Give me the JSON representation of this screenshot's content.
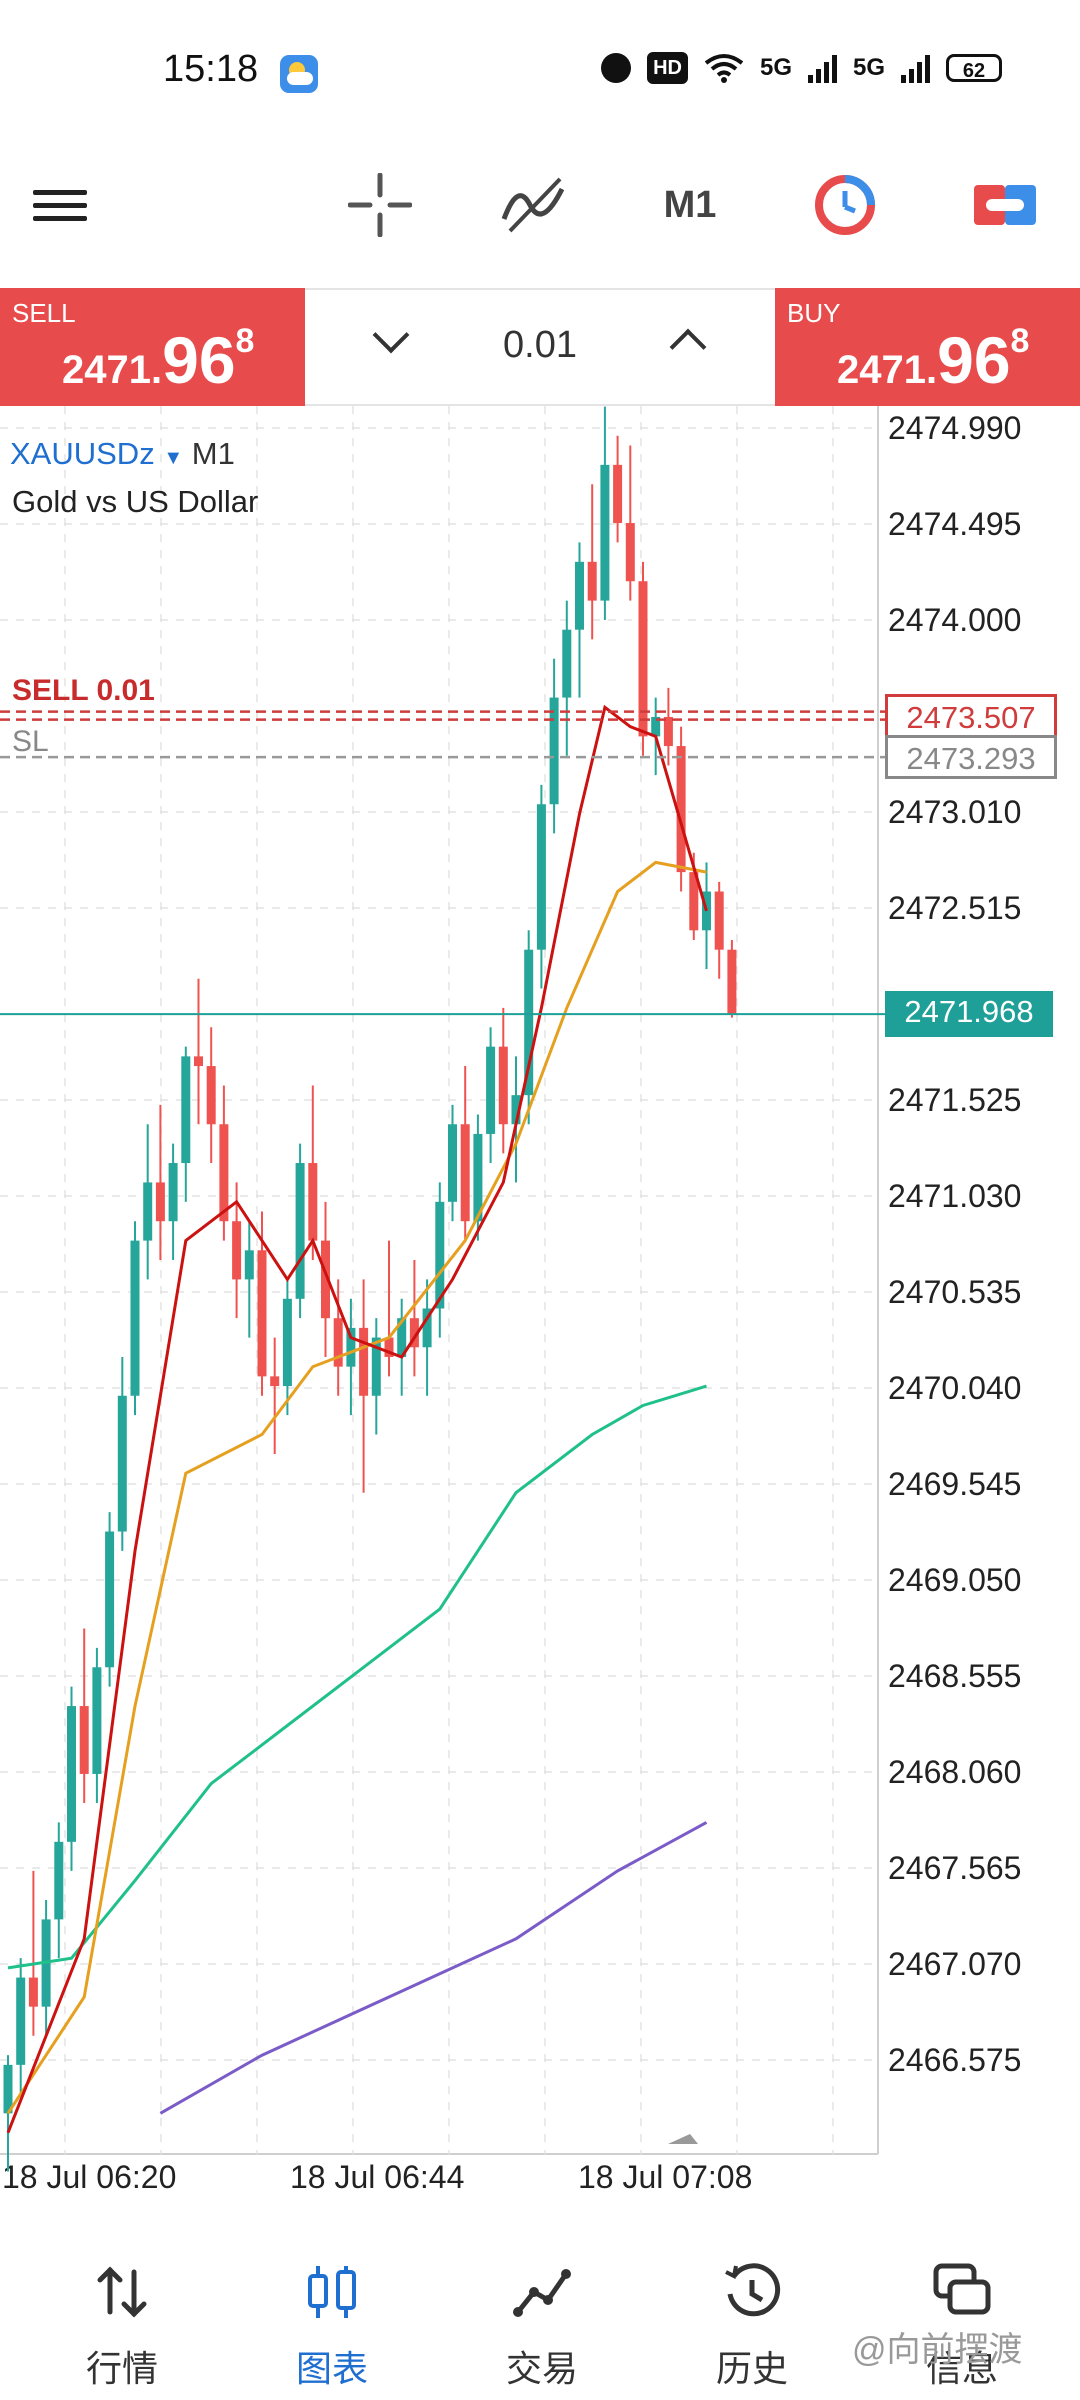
{
  "status_bar": {
    "time": "15:18",
    "network": "5G",
    "network2": "5G",
    "hd": "HD",
    "battery": "62"
  },
  "toolbar": {
    "timeframe": "M1",
    "icons": [
      "menu-icon",
      "crosshair-icon",
      "indicators-icon",
      "timeframe-label",
      "history-clock-icon",
      "trade-toggle-icon"
    ]
  },
  "trade_panel": {
    "sell_label": "SELL",
    "sell_price_main": "2471.",
    "sell_price_big": "96",
    "sell_price_sup": "8",
    "buy_label": "BUY",
    "buy_price_main": "2471.",
    "buy_price_big": "96",
    "buy_price_sup": "8",
    "volume": "0.01"
  },
  "chart": {
    "symbol": "XAUUSDz",
    "timeframe": "M1",
    "description": "Gold vs US Dollar",
    "sell_line_label": "SELL 0.01",
    "sl_label": "SL",
    "sell_price_tag": "2473.507",
    "sl_price_tag": "2473.293",
    "current_price_tag": "2471.968",
    "price_ticks": [
      "2474.990",
      "2474.495",
      "2474.000",
      "2473.010",
      "2472.515",
      "2471.525",
      "2471.030",
      "2470.535",
      "2470.040",
      "2469.545",
      "2469.050",
      "2468.555",
      "2468.060",
      "2467.565",
      "2467.070",
      "2466.575"
    ],
    "time_ticks": [
      "18 Jul 06:20",
      "18 Jul 06:44",
      "18 Jul 07:08"
    ],
    "colors": {
      "bull": "#26a69a",
      "bear": "#ef5350",
      "ma_fast": "#cc1111",
      "ma_mid": "#e6a020",
      "ma_slow": "#20c08a",
      "ma_long": "#7a5bc8",
      "current_line": "#1e9f98"
    }
  },
  "chart_data": {
    "type": "candlestick",
    "instrument": "XAUUSDz",
    "timeframe": "M1",
    "ylim": [
      2466.3,
      2475.1
    ],
    "candles": [
      {
        "o": 2466.3,
        "h": 2466.6,
        "l": 2466.0,
        "c": 2466.55
      },
      {
        "o": 2466.55,
        "h": 2467.1,
        "l": 2466.4,
        "c": 2467.0
      },
      {
        "o": 2467.0,
        "h": 2467.55,
        "l": 2466.7,
        "c": 2466.85
      },
      {
        "o": 2466.85,
        "h": 2467.4,
        "l": 2466.7,
        "c": 2467.3
      },
      {
        "o": 2467.3,
        "h": 2467.8,
        "l": 2467.1,
        "c": 2467.7
      },
      {
        "o": 2467.7,
        "h": 2468.5,
        "l": 2467.55,
        "c": 2468.4
      },
      {
        "o": 2468.4,
        "h": 2468.8,
        "l": 2467.9,
        "c": 2468.05
      },
      {
        "o": 2468.05,
        "h": 2468.7,
        "l": 2467.9,
        "c": 2468.6
      },
      {
        "o": 2468.6,
        "h": 2469.4,
        "l": 2468.5,
        "c": 2469.3
      },
      {
        "o": 2469.3,
        "h": 2470.2,
        "l": 2469.2,
        "c": 2470.0
      },
      {
        "o": 2470.0,
        "h": 2470.9,
        "l": 2469.9,
        "c": 2470.8
      },
      {
        "o": 2470.8,
        "h": 2471.4,
        "l": 2470.6,
        "c": 2471.1
      },
      {
        "o": 2471.1,
        "h": 2471.5,
        "l": 2470.7,
        "c": 2470.9
      },
      {
        "o": 2470.9,
        "h": 2471.3,
        "l": 2470.7,
        "c": 2471.2
      },
      {
        "o": 2471.2,
        "h": 2471.8,
        "l": 2471.0,
        "c": 2471.75
      },
      {
        "o": 2471.75,
        "h": 2472.15,
        "l": 2471.4,
        "c": 2471.7
      },
      {
        "o": 2471.7,
        "h": 2471.9,
        "l": 2471.2,
        "c": 2471.4
      },
      {
        "o": 2471.4,
        "h": 2471.6,
        "l": 2470.8,
        "c": 2470.9
      },
      {
        "o": 2470.9,
        "h": 2471.1,
        "l": 2470.4,
        "c": 2470.6
      },
      {
        "o": 2470.6,
        "h": 2470.9,
        "l": 2470.3,
        "c": 2470.75
      },
      {
        "o": 2470.75,
        "h": 2470.95,
        "l": 2470.0,
        "c": 2470.1
      },
      {
        "o": 2470.1,
        "h": 2470.3,
        "l": 2469.7,
        "c": 2470.05
      },
      {
        "o": 2470.05,
        "h": 2470.6,
        "l": 2469.9,
        "c": 2470.5
      },
      {
        "o": 2470.5,
        "h": 2471.3,
        "l": 2470.4,
        "c": 2471.2
      },
      {
        "o": 2471.2,
        "h": 2471.6,
        "l": 2470.7,
        "c": 2470.8
      },
      {
        "o": 2470.8,
        "h": 2471.0,
        "l": 2470.2,
        "c": 2470.4
      },
      {
        "o": 2470.4,
        "h": 2470.6,
        "l": 2470.0,
        "c": 2470.15
      },
      {
        "o": 2470.15,
        "h": 2470.5,
        "l": 2469.9,
        "c": 2470.35
      },
      {
        "o": 2470.35,
        "h": 2470.6,
        "l": 2469.5,
        "c": 2470.0
      },
      {
        "o": 2470.0,
        "h": 2470.4,
        "l": 2469.8,
        "c": 2470.3
      },
      {
        "o": 2470.3,
        "h": 2470.8,
        "l": 2470.1,
        "c": 2470.2
      },
      {
        "o": 2470.2,
        "h": 2470.5,
        "l": 2470.0,
        "c": 2470.4
      },
      {
        "o": 2470.4,
        "h": 2470.7,
        "l": 2470.1,
        "c": 2470.25
      },
      {
        "o": 2470.25,
        "h": 2470.6,
        "l": 2470.0,
        "c": 2470.45
      },
      {
        "o": 2470.45,
        "h": 2471.1,
        "l": 2470.3,
        "c": 2471.0
      },
      {
        "o": 2471.0,
        "h": 2471.5,
        "l": 2470.9,
        "c": 2471.4
      },
      {
        "o": 2471.4,
        "h": 2471.7,
        "l": 2470.8,
        "c": 2470.9
      },
      {
        "o": 2470.9,
        "h": 2471.45,
        "l": 2470.8,
        "c": 2471.35
      },
      {
        "o": 2471.35,
        "h": 2471.9,
        "l": 2471.2,
        "c": 2471.8
      },
      {
        "o": 2471.8,
        "h": 2472.0,
        "l": 2471.25,
        "c": 2471.4
      },
      {
        "o": 2471.4,
        "h": 2471.75,
        "l": 2471.1,
        "c": 2471.55
      },
      {
        "o": 2471.55,
        "h": 2472.4,
        "l": 2471.4,
        "c": 2472.3
      },
      {
        "o": 2472.3,
        "h": 2473.15,
        "l": 2472.1,
        "c": 2473.05
      },
      {
        "o": 2473.05,
        "h": 2473.8,
        "l": 2472.9,
        "c": 2473.6
      },
      {
        "o": 2473.6,
        "h": 2474.1,
        "l": 2473.3,
        "c": 2473.95
      },
      {
        "o": 2473.95,
        "h": 2474.4,
        "l": 2473.6,
        "c": 2474.3
      },
      {
        "o": 2474.3,
        "h": 2474.7,
        "l": 2473.9,
        "c": 2474.1
      },
      {
        "o": 2474.1,
        "h": 2475.1,
        "l": 2474.0,
        "c": 2474.8
      },
      {
        "o": 2474.8,
        "h": 2474.95,
        "l": 2474.4,
        "c": 2474.5
      },
      {
        "o": 2474.5,
        "h": 2474.9,
        "l": 2474.1,
        "c": 2474.2
      },
      {
        "o": 2474.2,
        "h": 2474.3,
        "l": 2473.3,
        "c": 2473.4
      },
      {
        "o": 2473.4,
        "h": 2473.6,
        "l": 2473.2,
        "c": 2473.5
      },
      {
        "o": 2473.5,
        "h": 2473.65,
        "l": 2473.25,
        "c": 2473.35
      },
      {
        "o": 2473.35,
        "h": 2473.45,
        "l": 2472.6,
        "c": 2472.7
      },
      {
        "o": 2472.7,
        "h": 2472.8,
        "l": 2472.35,
        "c": 2472.4
      },
      {
        "o": 2472.4,
        "h": 2472.75,
        "l": 2472.2,
        "c": 2472.6
      },
      {
        "o": 2472.6,
        "h": 2472.65,
        "l": 2472.15,
        "c": 2472.3
      },
      {
        "o": 2472.3,
        "h": 2472.35,
        "l": 2471.95,
        "c": 2471.97
      }
    ],
    "ma_fast": [
      [
        0,
        2466.2
      ],
      [
        6,
        2467.2
      ],
      [
        10,
        2469.2
      ],
      [
        14,
        2470.8
      ],
      [
        18,
        2471.0
      ],
      [
        22,
        2470.6
      ],
      [
        24,
        2470.8
      ],
      [
        27,
        2470.3
      ],
      [
        31,
        2470.2
      ],
      [
        35,
        2470.6
      ],
      [
        39,
        2471.1
      ],
      [
        42,
        2472.0
      ],
      [
        45,
        2473.0
      ],
      [
        47,
        2473.55
      ],
      [
        49,
        2473.45
      ],
      [
        51,
        2473.4
      ],
      [
        53,
        2472.95
      ],
      [
        55,
        2472.5
      ]
    ],
    "ma_mid": [
      [
        0,
        2466.3
      ],
      [
        6,
        2466.9
      ],
      [
        10,
        2468.4
      ],
      [
        14,
        2469.6
      ],
      [
        20,
        2469.8
      ],
      [
        24,
        2470.15
      ],
      [
        30,
        2470.3
      ],
      [
        36,
        2470.8
      ],
      [
        40,
        2471.3
      ],
      [
        44,
        2472.0
      ],
      [
        48,
        2472.6
      ],
      [
        51,
        2472.75
      ],
      [
        55,
        2472.7
      ]
    ],
    "ma_slow": [
      [
        0,
        2467.05
      ],
      [
        5,
        2467.1
      ],
      [
        10,
        2467.5
      ],
      [
        16,
        2468.0
      ],
      [
        22,
        2468.3
      ],
      [
        28,
        2468.6
      ],
      [
        34,
        2468.9
      ],
      [
        40,
        2469.5
      ],
      [
        46,
        2469.8
      ],
      [
        50,
        2469.95
      ],
      [
        55,
        2470.05
      ]
    ],
    "ma_long": [
      [
        12,
        2466.3
      ],
      [
        20,
        2466.6
      ],
      [
        30,
        2466.9
      ],
      [
        40,
        2467.2
      ],
      [
        48,
        2467.55
      ],
      [
        55,
        2467.8
      ]
    ]
  },
  "bottom_nav": {
    "items": [
      {
        "label": "行情"
      },
      {
        "label": "图表"
      },
      {
        "label": "交易"
      },
      {
        "label": "历史"
      },
      {
        "label": "信息"
      }
    ],
    "watermark": "@向前摆渡"
  }
}
